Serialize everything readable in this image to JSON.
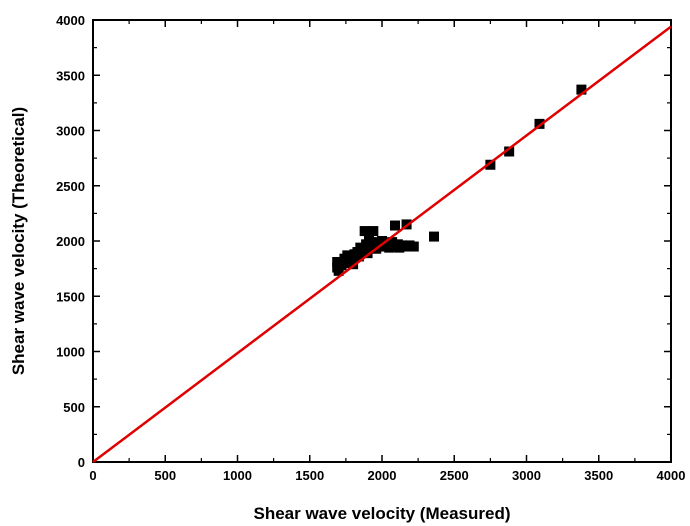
{
  "chart_data": {
    "type": "scatter",
    "title": "",
    "xlabel": "Shear wave velocity (Measured)",
    "ylabel": "Shear wave velocity (Theoretical)",
    "xlim": [
      0,
      4000
    ],
    "ylim": [
      0,
      4000
    ],
    "x_ticks": [
      0,
      500,
      1000,
      1500,
      2000,
      2500,
      3000,
      3500,
      4000
    ],
    "y_ticks": [
      0,
      500,
      1000,
      1500,
      2000,
      2500,
      3000,
      3500,
      4000
    ],
    "x_tick_labels": [
      "0",
      "500",
      "1000",
      "1500",
      "2000",
      "2500",
      "3000",
      "3500",
      "4000"
    ],
    "y_tick_labels": [
      "0",
      "500",
      "1000",
      "1500",
      "2000",
      "2500",
      "3000",
      "3500",
      "4000"
    ],
    "grid": false,
    "legend": "none",
    "marker": "square",
    "marker_color": "#000000",
    "line_color": "#e00000",
    "points": [
      [
        1690,
        1760
      ],
      [
        1690,
        1810
      ],
      [
        1700,
        1730
      ],
      [
        1720,
        1780
      ],
      [
        1740,
        1840
      ],
      [
        1750,
        1800
      ],
      [
        1760,
        1870
      ],
      [
        1780,
        1820
      ],
      [
        1790,
        1850
      ],
      [
        1800,
        1790
      ],
      [
        1810,
        1880
      ],
      [
        1830,
        1900
      ],
      [
        1840,
        1860
      ],
      [
        1850,
        1940
      ],
      [
        1870,
        1920
      ],
      [
        1880,
        2090
      ],
      [
        1890,
        1970
      ],
      [
        1900,
        1890
      ],
      [
        1910,
        2010
      ],
      [
        1920,
        1950
      ],
      [
        1940,
        2090
      ],
      [
        1950,
        1990
      ],
      [
        1960,
        1930
      ],
      [
        1980,
        1960
      ],
      [
        2000,
        2000
      ],
      [
        2010,
        1950
      ],
      [
        2030,
        1970
      ],
      [
        2050,
        1940
      ],
      [
        2070,
        1990
      ],
      [
        2090,
        2140
      ],
      [
        2100,
        1950
      ],
      [
        2110,
        1970
      ],
      [
        2120,
        1940
      ],
      [
        2140,
        1960
      ],
      [
        2160,
        1950
      ],
      [
        2170,
        2150
      ],
      [
        2190,
        1960
      ],
      [
        2220,
        1950
      ],
      [
        2360,
        2040
      ],
      [
        2750,
        2690
      ],
      [
        2880,
        2810
      ],
      [
        3090,
        3060
      ],
      [
        3380,
        3370
      ]
    ],
    "series": [
      {
        "type": "line",
        "x": [
          0,
          4000
        ],
        "y": [
          0,
          3940
        ]
      }
    ]
  }
}
